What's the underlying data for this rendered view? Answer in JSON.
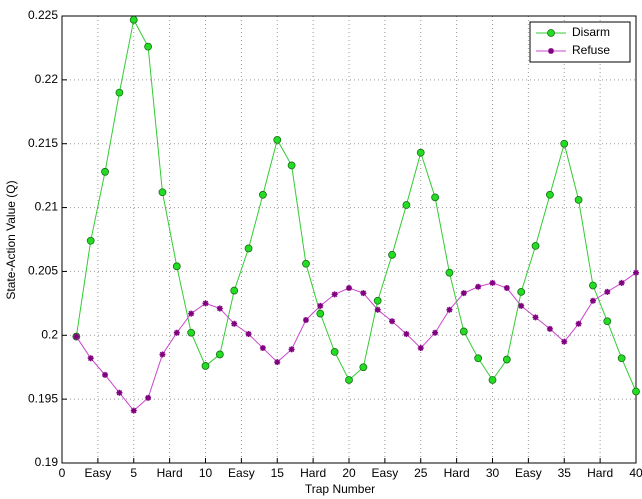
{
  "chart_data": {
    "type": "line",
    "xlabel": "Trap Number",
    "ylabel": "State-Action Value (Q)",
    "x": [
      1,
      2,
      3,
      4,
      5,
      6,
      7,
      8,
      9,
      10,
      11,
      12,
      13,
      14,
      15,
      16,
      17,
      18,
      19,
      20,
      21,
      22,
      23,
      24,
      25,
      26,
      27,
      28,
      29,
      30,
      31,
      32,
      33,
      34,
      35,
      36,
      37,
      38,
      39,
      40
    ],
    "series": [
      {
        "name": "Disarm",
        "color": "#33cc33",
        "marker_color": "#22dd22",
        "marker": "circle",
        "values": [
          0.1999,
          0.2074,
          0.2128,
          0.219,
          0.2247,
          0.2226,
          0.2112,
          0.2054,
          0.2002,
          0.1976,
          0.1985,
          0.2035,
          0.2068,
          0.211,
          0.2153,
          0.2133,
          0.2056,
          0.2017,
          0.1987,
          0.1965,
          0.1975,
          0.2027,
          0.2063,
          0.2102,
          0.2143,
          0.2108,
          0.2049,
          0.2003,
          0.1982,
          0.1965,
          0.1981,
          0.2034,
          0.207,
          0.211,
          0.215,
          0.2106,
          0.2039,
          0.2011,
          0.1982,
          0.1956
        ]
      },
      {
        "name": "Refuse",
        "color": "#cc44cc",
        "marker_color": "#800080",
        "marker": "star",
        "values": [
          0.1999,
          0.1982,
          0.1969,
          0.1955,
          0.1941,
          0.1951,
          0.1985,
          0.2002,
          0.2017,
          0.2025,
          0.2021,
          0.2009,
          0.2001,
          0.199,
          0.1979,
          0.1989,
          0.2012,
          0.2023,
          0.2032,
          0.2037,
          0.2033,
          0.202,
          0.2011,
          0.2001,
          0.199,
          0.2002,
          0.202,
          0.2033,
          0.2038,
          0.2041,
          0.2037,
          0.2023,
          0.2014,
          0.2005,
          0.1995,
          0.2009,
          0.2027,
          0.2034,
          0.2041,
          0.2049
        ]
      }
    ],
    "xlim": [
      0,
      40
    ],
    "xticks": [
      0,
      {
        "value": 2.5,
        "label": "Easy"
      },
      5,
      {
        "value": 7.5,
        "label": "Hard"
      },
      10,
      {
        "value": 12.5,
        "label": "Easy"
      },
      15,
      {
        "value": 17.5,
        "label": "Hard"
      },
      20,
      {
        "value": 22.5,
        "label": "Easy"
      },
      25,
      {
        "value": 27.5,
        "label": "Hard"
      },
      30,
      {
        "value": 32.5,
        "label": "Easy"
      },
      35,
      {
        "value": 37.5,
        "label": "Hard"
      },
      40
    ],
    "ylim": [
      0.19,
      0.225
    ],
    "yticks": [
      0.19,
      0.195,
      0.2,
      0.205,
      0.21,
      0.215,
      0.22,
      0.225
    ],
    "grid": true,
    "legend": "northeast"
  }
}
